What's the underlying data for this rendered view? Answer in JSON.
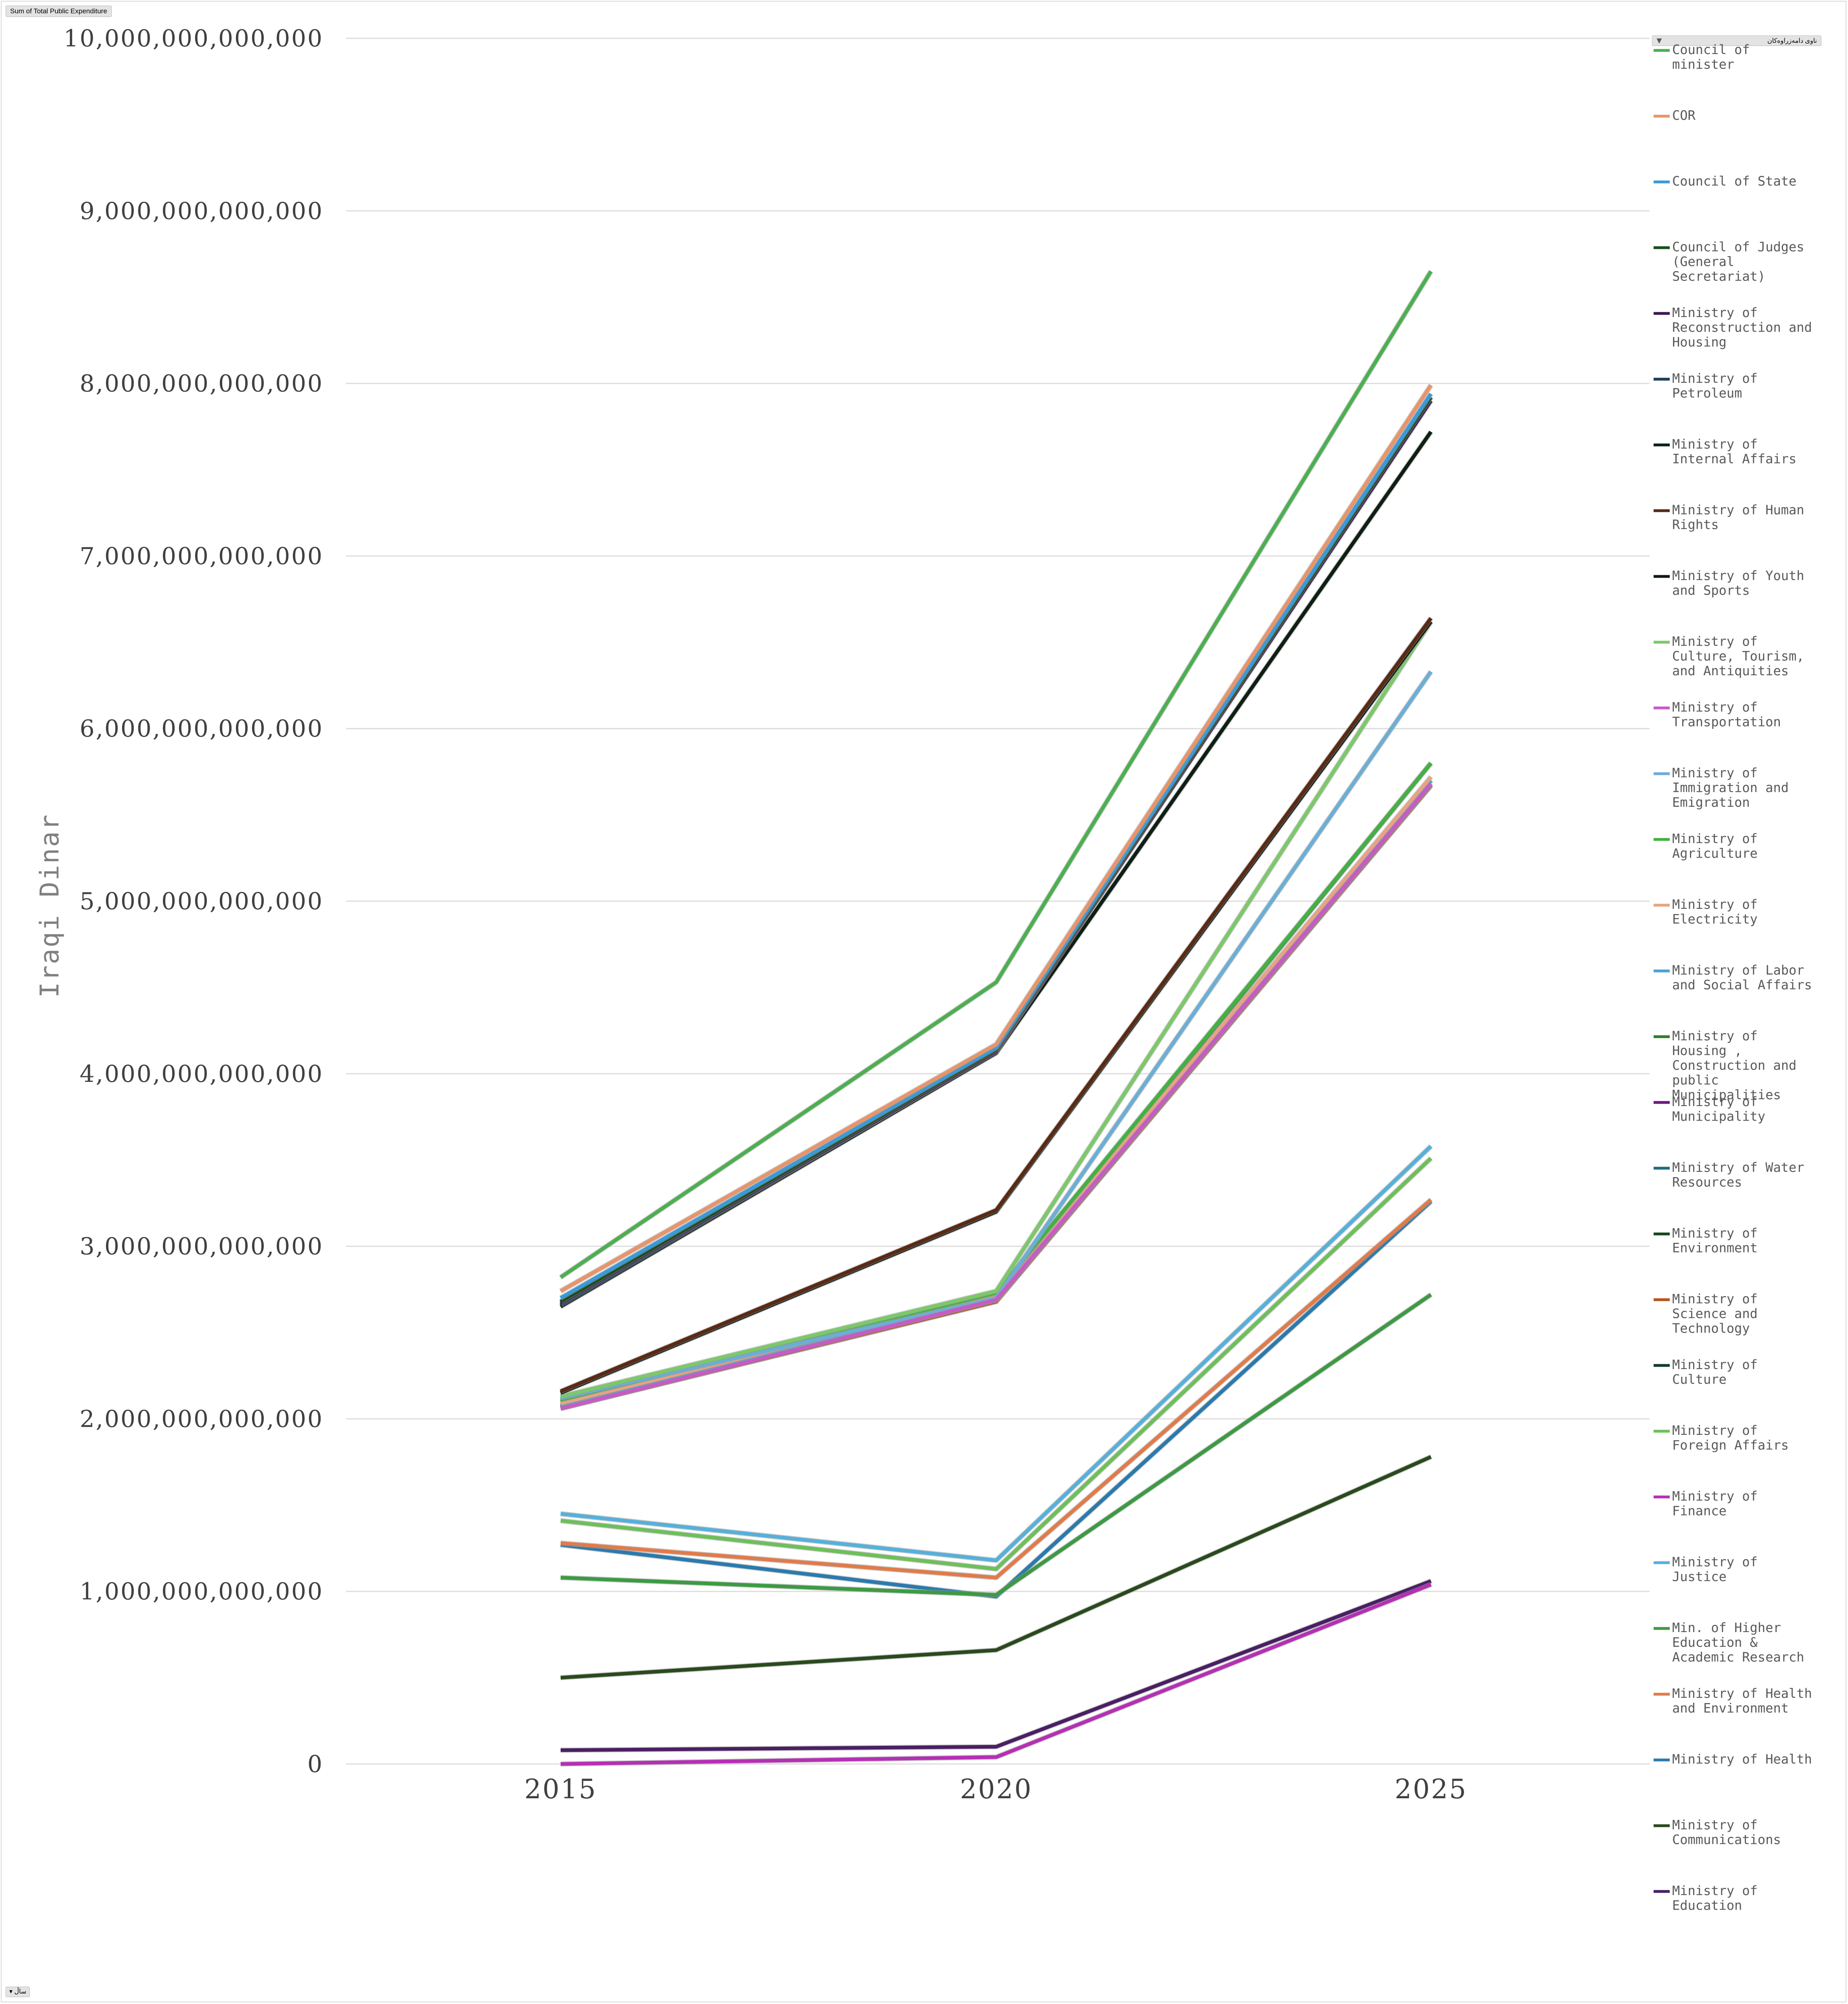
{
  "field_buttons": {
    "values": "Sum of Total Public Expenditure",
    "legend": "ناوی دامەزراوەکان",
    "axis": "ساڵ"
  },
  "chart_data": {
    "type": "line",
    "title": "",
    "xlabel": "",
    "ylabel": "Iraqi Dinar",
    "x": [
      "2015",
      "2020",
      "2025"
    ],
    "ylim": [
      0,
      10000000000000
    ],
    "yticks": [
      0,
      1000000000000,
      2000000000000,
      3000000000000,
      4000000000000,
      5000000000000,
      6000000000000,
      7000000000000,
      8000000000000,
      9000000000000,
      10000000000000
    ],
    "ytick_labels": [
      "0",
      "1,000,000,000,000",
      "2,000,000,000,000",
      "3,000,000,000,000",
      "4,000,000,000,000",
      "5,000,000,000,000",
      "6,000,000,000,000",
      "7,000,000,000,000",
      "8,000,000,000,000",
      "9,000,000,000,000",
      "10,000,000,000,000"
    ],
    "grid": true,
    "legend_position": "right",
    "series": [
      {
        "name": "Council of minister",
        "legend_lines": [
          "Council of",
          "minister"
        ],
        "color": "#4CAF50",
        "values": [
          2820000000000,
          4530000000000,
          8650000000000
        ]
      },
      {
        "name": "COR",
        "legend_lines": [
          "COR"
        ],
        "color": "#E8946A",
        "values": [
          2740000000000,
          4170000000000,
          7990000000000
        ]
      },
      {
        "name": "Council of State",
        "legend_lines": [
          "Council of State"
        ],
        "color": "#3A9AD9",
        "values": [
          2700000000000,
          4150000000000,
          7940000000000
        ]
      },
      {
        "name": "Council of Judges (General Secretariat)",
        "legend_lines": [
          "Council of Judges",
          "(General",
          "Secretariat)"
        ],
        "color": "#1B4D1B",
        "values": [
          2680000000000,
          4140000000000,
          7920000000000
        ]
      },
      {
        "name": "Ministry of Reconstruction and Housing",
        "legend_lines": [
          "Ministry of",
          "Reconstruction and",
          "Housing"
        ],
        "color": "#3D1A4F",
        "values": [
          2670000000000,
          4130000000000,
          7900000000000
        ]
      },
      {
        "name": "Ministry of Petroleum",
        "legend_lines": [
          "Ministry of",
          "Petroleum"
        ],
        "color": "#1A3F5C",
        "values": [
          2660000000000,
          4130000000000,
          7920000000000
        ]
      },
      {
        "name": "Ministry of Internal Affairs",
        "legend_lines": [
          "Ministry of",
          "Internal Affairs"
        ],
        "color": "#0F1F14",
        "values": [
          2650000000000,
          4120000000000,
          7720000000000
        ]
      },
      {
        "name": "Ministry of Human Rights",
        "legend_lines": [
          "Ministry of Human",
          "Rights"
        ],
        "color": "#5A2A14",
        "values": [
          2160000000000,
          3210000000000,
          6640000000000
        ]
      },
      {
        "name": "Ministry of Youth and Sports",
        "legend_lines": [
          "Ministry of Youth",
          "and Sports"
        ],
        "color": "#0F1A14",
        "values": [
          2150000000000,
          3200000000000,
          6620000000000
        ]
      },
      {
        "name": "Ministry of Culture, Tourism, and Antiquities",
        "legend_lines": [
          "Ministry of",
          "Culture, Tourism,",
          "and Antiquities"
        ],
        "color": "#7CC86A",
        "values": [
          2130000000000,
          2740000000000,
          6620000000000
        ]
      },
      {
        "name": "Ministry of Transportation",
        "legend_lines": [
          "Ministry of",
          "Transportation"
        ],
        "color": "#C65BC6",
        "values": [
          2060000000000,
          2690000000000,
          5680000000000
        ]
      },
      {
        "name": "Ministry of Immigration and Emigration",
        "legend_lines": [
          "Ministry of",
          "Immigration and",
          "Emigration"
        ],
        "color": "#6BAED6",
        "values": [
          2120000000000,
          2700000000000,
          6330000000000
        ]
      },
      {
        "name": "Ministry of Agriculture",
        "legend_lines": [
          "Ministry of",
          "Agriculture"
        ],
        "color": "#43B043",
        "values": [
          2110000000000,
          2730000000000,
          5800000000000
        ]
      },
      {
        "name": "Ministry of Electricity",
        "legend_lines": [
          "Ministry of",
          "Electricity"
        ],
        "color": "#E8A383",
        "values": [
          2090000000000,
          2720000000000,
          5720000000000
        ]
      },
      {
        "name": "Ministry of Labor and Social Affairs",
        "legend_lines": [
          "Ministry of Labor",
          "and Social Affairs"
        ],
        "color": "#4BA3D3",
        "values": [
          2080000000000,
          2710000000000,
          5700000000000
        ]
      },
      {
        "name": "Ministry of Housing , Construction and public Municipalities",
        "legend_lines": [
          "Ministry of",
          "Housing ,",
          "Construction and",
          "public",
          "Municipalities"
        ],
        "color": "#2E7D32",
        "values": [
          2100000000000,
          2710000000000,
          5800000000000
        ]
      },
      {
        "name": "Ministry of Municipality",
        "legend_lines": [
          "Ministry of",
          "Municipality"
        ],
        "color": "#6A1B7A",
        "values": [
          2070000000000,
          2700000000000,
          5700000000000
        ]
      },
      {
        "name": "Ministry of Water Resources",
        "legend_lines": [
          "Ministry of Water",
          "Resources"
        ],
        "color": "#1F6B80",
        "values": [
          2080000000000,
          2690000000000,
          5680000000000
        ]
      },
      {
        "name": "Ministry of Environment",
        "legend_lines": [
          "Ministry of",
          "Environment"
        ],
        "color": "#14471E",
        "values": [
          2070000000000,
          2690000000000,
          5680000000000
        ]
      },
      {
        "name": "Ministry of Science and Technology",
        "legend_lines": [
          "Ministry of",
          "Science and",
          "Technology"
        ],
        "color": "#B5541C",
        "values": [
          2060000000000,
          2680000000000,
          5670000000000
        ]
      },
      {
        "name": "Ministry of Culture",
        "legend_lines": [
          "Ministry of",
          "Culture"
        ],
        "color": "#143B33",
        "values": [
          2060000000000,
          2680000000000,
          5670000000000
        ]
      },
      {
        "name": "Ministry of Foreign Affairs",
        "legend_lines": [
          "Ministry of",
          "Foreign Affairs"
        ],
        "color": "#6DBF5A",
        "values": [
          1410000000000,
          1130000000000,
          3510000000000
        ]
      },
      {
        "name": "Ministry of Finance",
        "legend_lines": [
          "Ministry of",
          "Finance"
        ],
        "color": "#B52FB5",
        "values": [
          0,
          40000000000,
          1040000000000
        ]
      },
      {
        "name": "Ministry of Justice",
        "legend_lines": [
          "Ministry of",
          "Justice"
        ],
        "color": "#56B0DA",
        "values": [
          1450000000000,
          1180000000000,
          3580000000000
        ]
      },
      {
        "name": "Min. of Higher Education & Academic Research",
        "legend_lines": [
          "Min. of Higher",
          "Education &",
          "Academic Research"
        ],
        "color": "#3C9A43",
        "values": [
          1080000000000,
          980000000000,
          2720000000000
        ]
      },
      {
        "name": "Ministry of Health and Environment",
        "legend_lines": [
          "Ministry of Health",
          "and Environment"
        ],
        "color": "#E07B4A",
        "values": [
          1280000000000,
          1080000000000,
          3270000000000
        ]
      },
      {
        "name": "Ministry of Health",
        "legend_lines": [
          "Ministry of Health"
        ],
        "color": "#2A7AAE",
        "values": [
          1270000000000,
          970000000000,
          3260000000000
        ]
      },
      {
        "name": "Ministry of Communications",
        "legend_lines": [
          "Ministry of",
          "Communications"
        ],
        "color": "#2A4A1E",
        "values": [
          500000000000,
          660000000000,
          1780000000000
        ]
      },
      {
        "name": "Ministry of Education",
        "legend_lines": [
          "Ministry of",
          "Education"
        ],
        "color": "#4A1F63",
        "values": [
          80000000000,
          100000000000,
          1060000000000
        ]
      }
    ]
  }
}
